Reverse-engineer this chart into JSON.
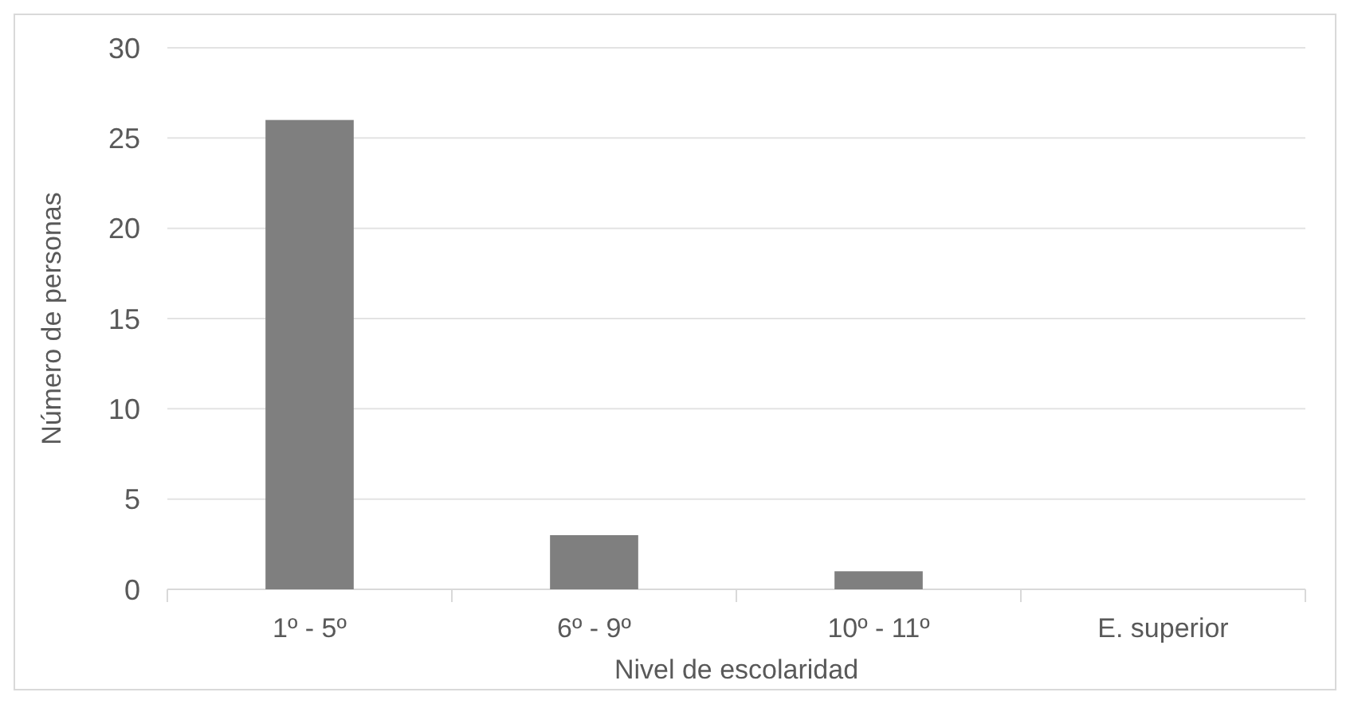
{
  "chart_data": {
    "type": "bar",
    "xlabel": "Nivel de escolaridad",
    "ylabel": "Número de personas",
    "categories": [
      "1º - 5º",
      "6º - 9º",
      "10º - 11º",
      "E. superior"
    ],
    "values": [
      26,
      3,
      1,
      0
    ],
    "color": "#7f7f7f",
    "ylim": [
      0,
      30
    ],
    "yticks": [
      0,
      5,
      10,
      15,
      20,
      25,
      30
    ],
    "grid": "y"
  }
}
